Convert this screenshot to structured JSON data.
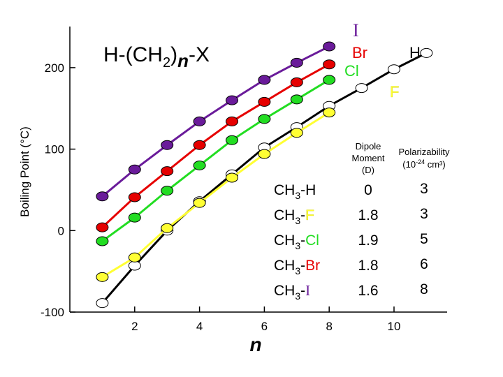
{
  "chart_data": {
    "type": "line",
    "title": "H-(CH2)n-X",
    "title_parts": {
      "pre": "H-(CH",
      "sub": "2",
      "close": ")",
      "n": "n",
      "post": "-X"
    },
    "xlabel": "n",
    "ylabel": "Boiling Point (°C)",
    "xlim": [
      0,
      11.5
    ],
    "ylim": [
      -100,
      250
    ],
    "xticks": [
      2,
      4,
      6,
      8,
      10
    ],
    "yticks": [
      -100,
      0,
      100,
      200
    ],
    "grid": false,
    "legend": "inline",
    "series": [
      {
        "name": "I",
        "color": "#6a1b9a",
        "x": [
          1,
          2,
          3,
          4,
          5,
          6,
          7,
          8
        ],
        "y": [
          42,
          75,
          105,
          134,
          160,
          185,
          206,
          226
        ]
      },
      {
        "name": "Br",
        "color": "#e60000",
        "x": [
          1,
          2,
          3,
          4,
          5,
          6,
          7,
          8
        ],
        "y": [
          4,
          41,
          73,
          105,
          134,
          158,
          182,
          204
        ]
      },
      {
        "name": "Cl",
        "color": "#22dd22",
        "x": [
          1,
          2,
          3,
          4,
          5,
          6,
          7,
          8
        ],
        "y": [
          -13,
          16,
          49,
          80,
          111,
          137,
          161,
          185
        ]
      },
      {
        "name": "F",
        "color": "#ffff33",
        "x": [
          1,
          2,
          3,
          4,
          5,
          6,
          7,
          8
        ],
        "y": [
          -57,
          -33,
          3,
          34,
          65,
          94,
          120,
          145
        ]
      },
      {
        "name": "H",
        "color": "#000000",
        "x": [
          1,
          2,
          3,
          4,
          5,
          6,
          7,
          8,
          9,
          10,
          11
        ],
        "y": [
          -89,
          -43,
          0,
          36,
          69,
          102,
          127,
          153,
          175,
          198,
          218
        ]
      }
    ]
  },
  "table": {
    "header_dipole": [
      "Dipole",
      "Moment",
      "(D)"
    ],
    "header_polar": [
      "Polarizability",
      "(10",
      "-24",
      " cm³)"
    ],
    "rows": [
      {
        "pre": "CH",
        "sub": "3",
        "dash": "-",
        "x": "H",
        "x_color": "#000000",
        "dipole": "0",
        "polar": "3"
      },
      {
        "pre": "CH",
        "sub": "3",
        "dash": "-",
        "x": "F",
        "x_color": "#ffff33",
        "dipole": "1.8",
        "polar": "3"
      },
      {
        "pre": "CH",
        "sub": "3",
        "dash": "-",
        "x": "Cl",
        "x_color": "#22dd22",
        "dipole": "1.9",
        "polar": "5"
      },
      {
        "pre": "CH",
        "sub": "3",
        "dash": "-",
        "x": "Br",
        "x_color": "#e60000",
        "dipole": "1.8",
        "polar": "6"
      },
      {
        "pre": "CH",
        "sub": "3",
        "dash": "-",
        "x": "I",
        "x_color": "#6a1b9a",
        "dipole": "1.6",
        "polar": "8"
      }
    ]
  }
}
